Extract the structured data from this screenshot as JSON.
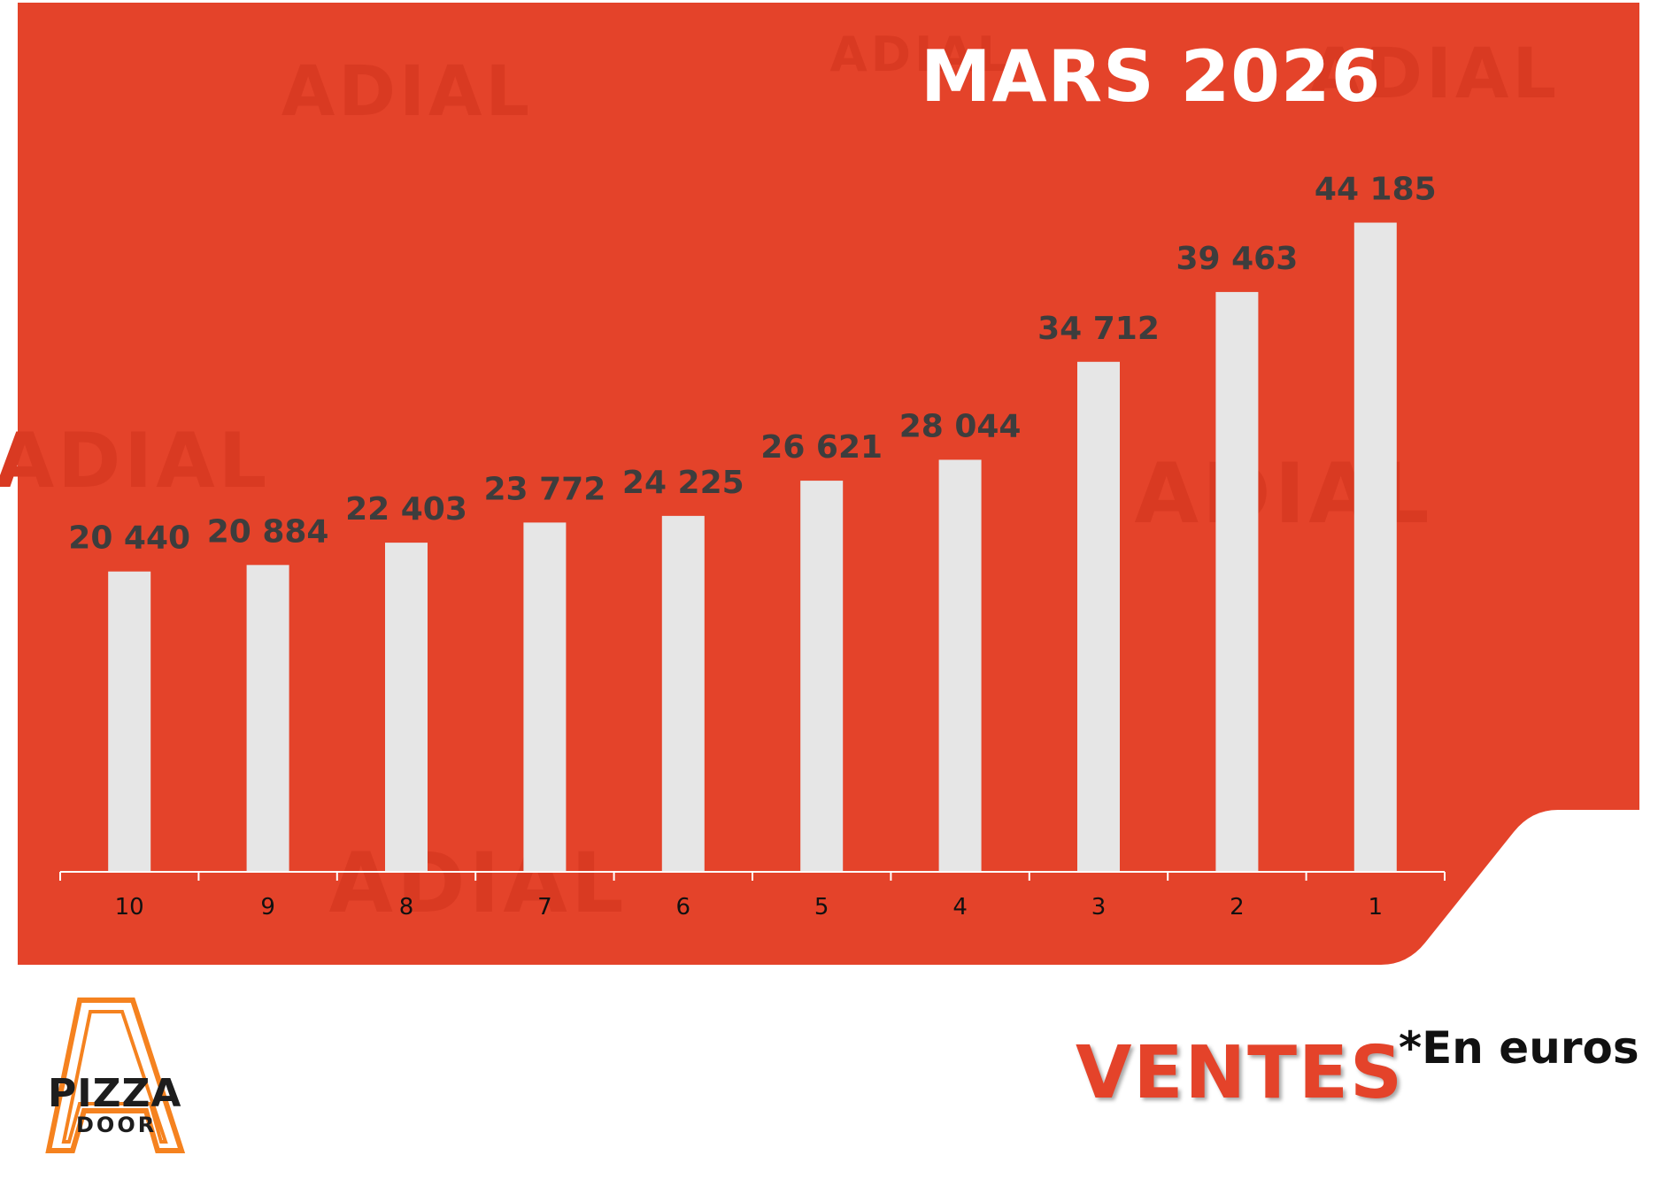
{
  "header": {
    "title": "MARS 2026"
  },
  "footer": {
    "label": "VENTES",
    "unit_note": "*En euros"
  },
  "logo": {
    "line1": "PIZZA",
    "line2": "DOOR",
    "watermark": "ADIAL"
  },
  "colors": {
    "panel": "#e4432a",
    "bar": "#e6e6e6",
    "value_text": "#3d3d3d",
    "watermark": "#d93a22",
    "logo_orange": "#f5821f"
  },
  "chart_data": {
    "type": "bar",
    "title": "MARS 2026",
    "categories": [
      "10",
      "9",
      "8",
      "7",
      "6",
      "5",
      "4",
      "3",
      "2",
      "1"
    ],
    "values": [
      20440,
      20884,
      22403,
      23772,
      24225,
      26621,
      28044,
      34712,
      39463,
      44185
    ],
    "value_labels": [
      "20 440",
      "20 884",
      "22 403",
      "23 772",
      "24 225",
      "26 621",
      "28 044",
      "34 712",
      "39 463",
      "44 185"
    ],
    "ylim": [
      0,
      50000
    ],
    "xlabel": "",
    "ylabel": "",
    "grid": false,
    "legend": "none"
  }
}
